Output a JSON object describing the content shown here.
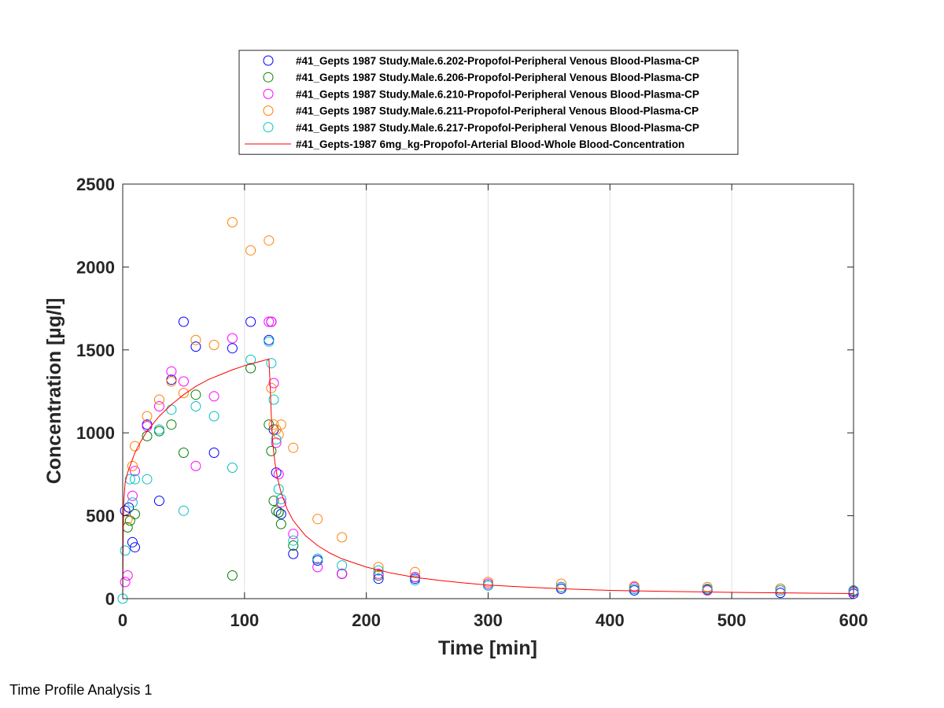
{
  "footer": {
    "caption": "Time Profile Analysis 1"
  },
  "chart_data": {
    "type": "scatter",
    "xlabel": "Time [min]",
    "ylabel": "Concentration [µg/l]",
    "xlim": [
      0,
      600
    ],
    "ylim": [
      0,
      2500
    ],
    "xticks": [
      0,
      100,
      200,
      300,
      400,
      500,
      600
    ],
    "yticks": [
      0,
      500,
      1000,
      1500,
      2000,
      2500
    ],
    "grid": "vertical lines at x ticks",
    "legend_position": "top-center, above plot",
    "series": [
      {
        "name": "#41_Gepts 1987 Study.Male.6.202-Propofol-Peripheral Venous Blood-Plasma-CP",
        "kind": "scatter",
        "color": "#0000ff",
        "x": [
          2,
          5,
          8,
          10,
          20,
          30,
          40,
          50,
          60,
          75,
          90,
          105,
          120,
          122,
          124,
          126,
          128,
          130,
          140,
          160,
          180,
          210,
          240,
          300,
          360,
          420,
          480,
          540,
          600
        ],
        "y": [
          530,
          550,
          340,
          310,
          1050,
          590,
          1320,
          1670,
          1520,
          880,
          1510,
          1670,
          1560,
          1670,
          1020,
          760,
          520,
          510,
          270,
          230,
          150,
          120,
          120,
          80,
          60,
          50,
          50,
          35,
          30
        ]
      },
      {
        "name": "#41_Gepts 1987 Study.Male.6.206-Propofol-Peripheral Venous Blood-Plasma-CP",
        "kind": "scatter",
        "color": "#008000",
        "x": [
          4,
          6,
          10,
          20,
          30,
          40,
          50,
          60,
          90,
          105,
          120,
          122,
          124,
          126,
          128,
          130,
          140,
          160,
          180,
          210,
          240,
          300,
          360,
          420,
          480,
          540,
          600
        ],
        "y": [
          430,
          470,
          510,
          980,
          1010,
          1050,
          880,
          1230,
          140,
          1390,
          1050,
          890,
          590,
          530,
          520,
          450,
          320,
          240,
          150,
          140,
          130,
          80,
          70,
          60,
          55,
          60,
          45
        ]
      },
      {
        "name": "#41_Gepts 1987 Study.Male.6.210-Propofol-Peripheral Venous Blood-Plasma-CP",
        "kind": "scatter",
        "color": "#ff00ff",
        "x": [
          2,
          4,
          8,
          10,
          20,
          30,
          40,
          50,
          60,
          75,
          90,
          120,
          122,
          124,
          126,
          128,
          130,
          140,
          160,
          180,
          210,
          240,
          300,
          360,
          420,
          480,
          540,
          600
        ],
        "y": [
          100,
          140,
          620,
          770,
          1040,
          1160,
          1370,
          1310,
          800,
          1220,
          1570,
          1670,
          1670,
          1300,
          940,
          750,
          580,
          390,
          190,
          150,
          150,
          130,
          90,
          70,
          70,
          50,
          50,
          40
        ]
      },
      {
        "name": "#41_Gepts 1987 Study.Male.6.211-Propofol-Peripheral Venous Blood-Plasma-CP",
        "kind": "scatter",
        "color": "#ff8000",
        "x": [
          4,
          8,
          10,
          20,
          30,
          40,
          50,
          60,
          75,
          90,
          105,
          120,
          122,
          124,
          126,
          128,
          130,
          140,
          160,
          180,
          210,
          240,
          300,
          360,
          420,
          480,
          540,
          600
        ],
        "y": [
          480,
          800,
          920,
          1100,
          1200,
          1310,
          1240,
          1560,
          1530,
          2270,
          2100,
          2160,
          1270,
          1050,
          1020,
          990,
          1050,
          910,
          480,
          370,
          190,
          160,
          100,
          90,
          75,
          70,
          60,
          50
        ]
      },
      {
        "name": "#41_Gepts 1987 Study.Male.6.217-Propofol-Peripheral Venous Blood-Plasma-CP",
        "kind": "scatter",
        "color": "#00c0c0",
        "x": [
          0,
          2,
          6,
          8,
          10,
          20,
          30,
          40,
          50,
          60,
          75,
          90,
          105,
          120,
          122,
          124,
          126,
          128,
          130,
          140,
          160,
          180,
          210,
          240,
          300,
          360,
          420,
          480,
          540,
          600
        ],
        "y": [
          0,
          290,
          720,
          580,
          720,
          720,
          1020,
          1140,
          530,
          1160,
          1100,
          790,
          1440,
          1550,
          1420,
          1200,
          960,
          660,
          600,
          350,
          240,
          200,
          170,
          110,
          80,
          70,
          60,
          60,
          50,
          50
        ]
      },
      {
        "name": "#41_Gepts-1987 6mg_kg-Propofol-Arterial Blood-Whole Blood-Concentration",
        "kind": "line",
        "color": "#ff0000",
        "x": [
          0,
          0.5,
          1,
          2,
          4,
          6,
          10,
          15,
          20,
          30,
          40,
          50,
          60,
          70,
          80,
          90,
          100,
          110,
          120,
          121,
          122,
          123,
          124,
          125,
          127,
          130,
          135,
          140,
          150,
          160,
          170,
          180,
          200,
          220,
          240,
          260,
          280,
          300,
          330,
          360,
          400,
          450,
          500,
          550,
          600
        ],
        "y": [
          0,
          450,
          600,
          700,
          760,
          800,
          880,
          950,
          1010,
          1100,
          1170,
          1230,
          1280,
          1320,
          1350,
          1380,
          1405,
          1425,
          1445,
          1300,
          1100,
          960,
          880,
          820,
          730,
          640,
          540,
          470,
          380,
          320,
          275,
          240,
          190,
          155,
          128,
          110,
          95,
          82,
          70,
          60,
          50,
          43,
          38,
          34,
          31
        ]
      }
    ]
  }
}
